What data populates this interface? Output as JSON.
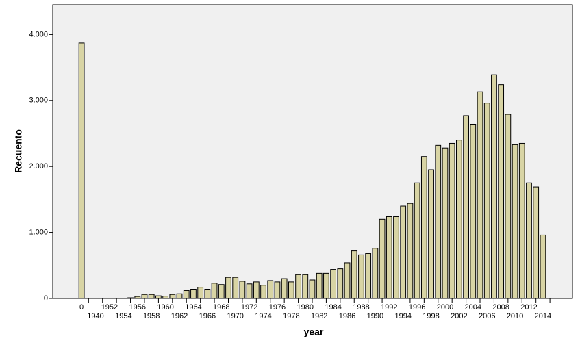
{
  "chart_data": {
    "type": "bar",
    "x_label": "year",
    "y_label": "Recuento",
    "color": "#d8d4a4",
    "categories": [
      0,
      null,
      1940,
      null,
      1952,
      null,
      1954,
      null,
      1956,
      null,
      1958,
      null,
      1960,
      null,
      1962,
      null,
      1964,
      null,
      1966,
      null,
      1968,
      null,
      1970,
      null,
      1972,
      null,
      1974,
      null,
      1976,
      null,
      1978,
      null,
      1980,
      null,
      1982,
      null,
      1984,
      null,
      1986,
      null,
      1988,
      null,
      1990,
      null,
      1992,
      null,
      1994,
      null,
      1996,
      null,
      1998,
      null,
      2000,
      null,
      2002,
      null,
      2004,
      null,
      2006,
      null,
      2008,
      null,
      2010,
      null,
      2012,
      null,
      2014
    ],
    "values": [
      3870,
      5,
      5,
      5,
      5,
      5,
      5,
      10,
      30,
      60,
      60,
      40,
      35,
      60,
      70,
      120,
      140,
      170,
      140,
      230,
      210,
      320,
      320,
      260,
      220,
      250,
      200,
      270,
      250,
      300,
      250,
      360,
      360,
      280,
      380,
      380,
      440,
      450,
      540,
      720,
      660,
      680,
      760,
      1200,
      1240,
      1240,
      1400,
      1440,
      1750,
      2150,
      1950,
      2320,
      2280,
      2350,
      2400,
      2770,
      2640,
      3130,
      2960,
      3390,
      3240,
      2790,
      2330,
      2350,
      1750,
      1690,
      960
    ],
    "ylim": [
      0,
      4450
    ],
    "yticks": [
      0,
      {
        "value": 1000,
        "label": "1.000"
      },
      {
        "value": 2000,
        "label": "2.000"
      },
      {
        "value": 3000,
        "label": "3.000"
      },
      {
        "value": 4000,
        "label": "4.000"
      }
    ]
  }
}
